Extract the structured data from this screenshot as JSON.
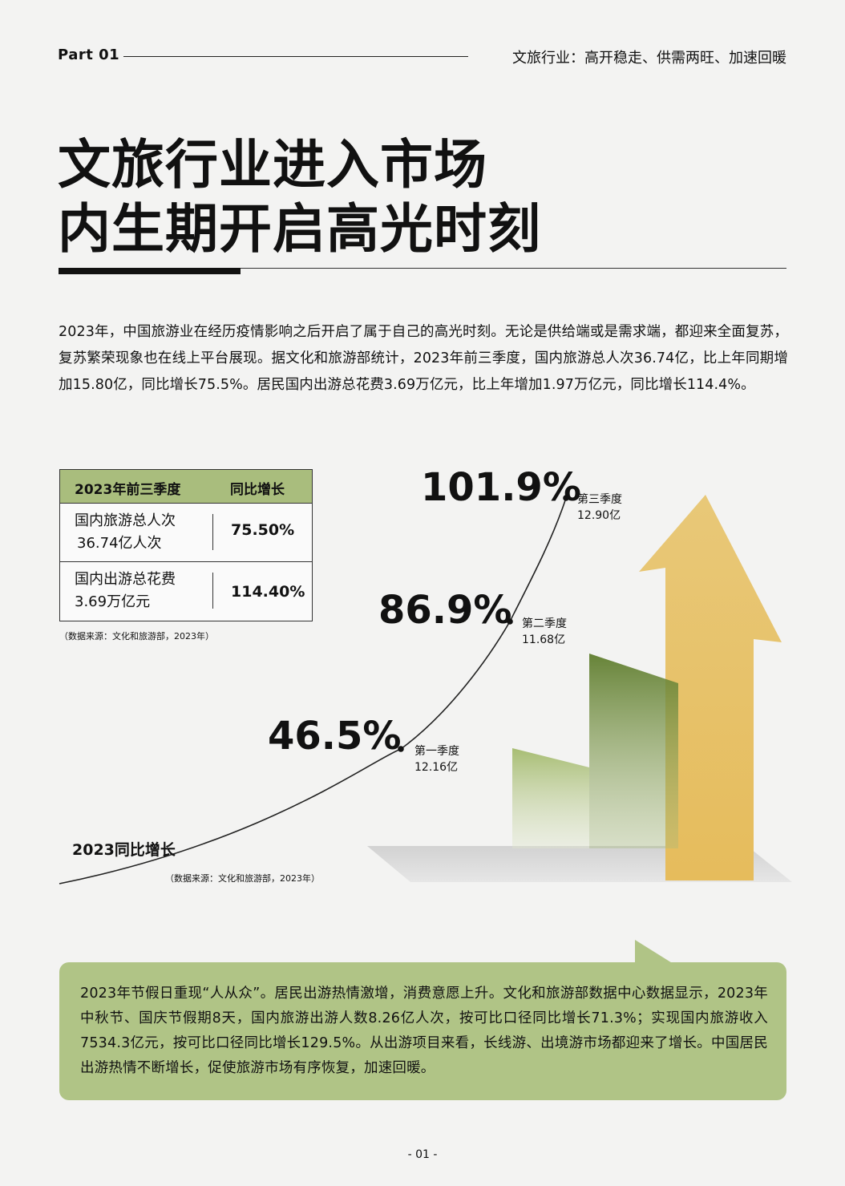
{
  "header": {
    "part": "Part 01",
    "section_title": "文旅行业：高开稳走、供需两旺、加速回暖"
  },
  "title": {
    "line1": "文旅行业进入市场",
    "line2": "内生期开启高光时刻"
  },
  "intro": "2023年，中国旅游业在经历疫情影响之后开启了属于自己的高光时刻。无论是供给端或是需求端，都迎来全面复苏，复苏繁荣现象也在线上平台展现。据文化和旅游部统计，2023年前三季度，国内旅游总人次36.74亿，比上年同期增加15.80亿，同比增长75.5%。居民国内出游总花费3.69万亿元，比上年增加1.97万亿元，同比增长114.4%。",
  "summary_table": {
    "headers": [
      "2023年前三季度",
      "同比增长"
    ],
    "rows": [
      {
        "label_line1": "国内旅游总人次",
        "label_line2": "36.74亿人次",
        "value": "75.50%"
      },
      {
        "label_line1": "国内出游总花费",
        "label_line2": "3.69万亿元",
        "value": "114.40%"
      }
    ],
    "source": "（数据来源：文化和旅游部，2023年）"
  },
  "chart_data": {
    "type": "line",
    "title": "2023同比增长",
    "categories": [
      "第一季度",
      "第二季度",
      "第三季度"
    ],
    "series": [
      {
        "values": [
          46.5,
          86.9,
          101.9
        ]
      }
    ],
    "value_labels": [
      "46.5%",
      "86.9%",
      "101.9%"
    ],
    "sub_labels": [
      "12.16亿",
      "11.68亿",
      "12.90亿"
    ],
    "source": "（数据来源：文化和旅游部，2023年）",
    "colors": {
      "arrow": "#e8c878",
      "bar_dark": "#6b8a3a",
      "bar_light": "#a9bd72",
      "shadow": "#d9d9d9"
    }
  },
  "callout": {
    "text": "2023年节假日重现“人从众”。居民出游热情激增，消费意愿上升。文化和旅游部数据中心数据显示，2023年中秋节、国庆节假期8天，国内旅游出游人数8.26亿人次，按可比口径同比增长71.3%；实现国内旅游收入7534.3亿元，按可比口径同比增长129.5%。从出游项目来看，长线游、出境游市场都迎来了增长。中国居民出游热情不断增长，促使旅游市场有序恢复，加速回暖。",
    "color": "#b0c486"
  },
  "page_number": "- 01 -"
}
